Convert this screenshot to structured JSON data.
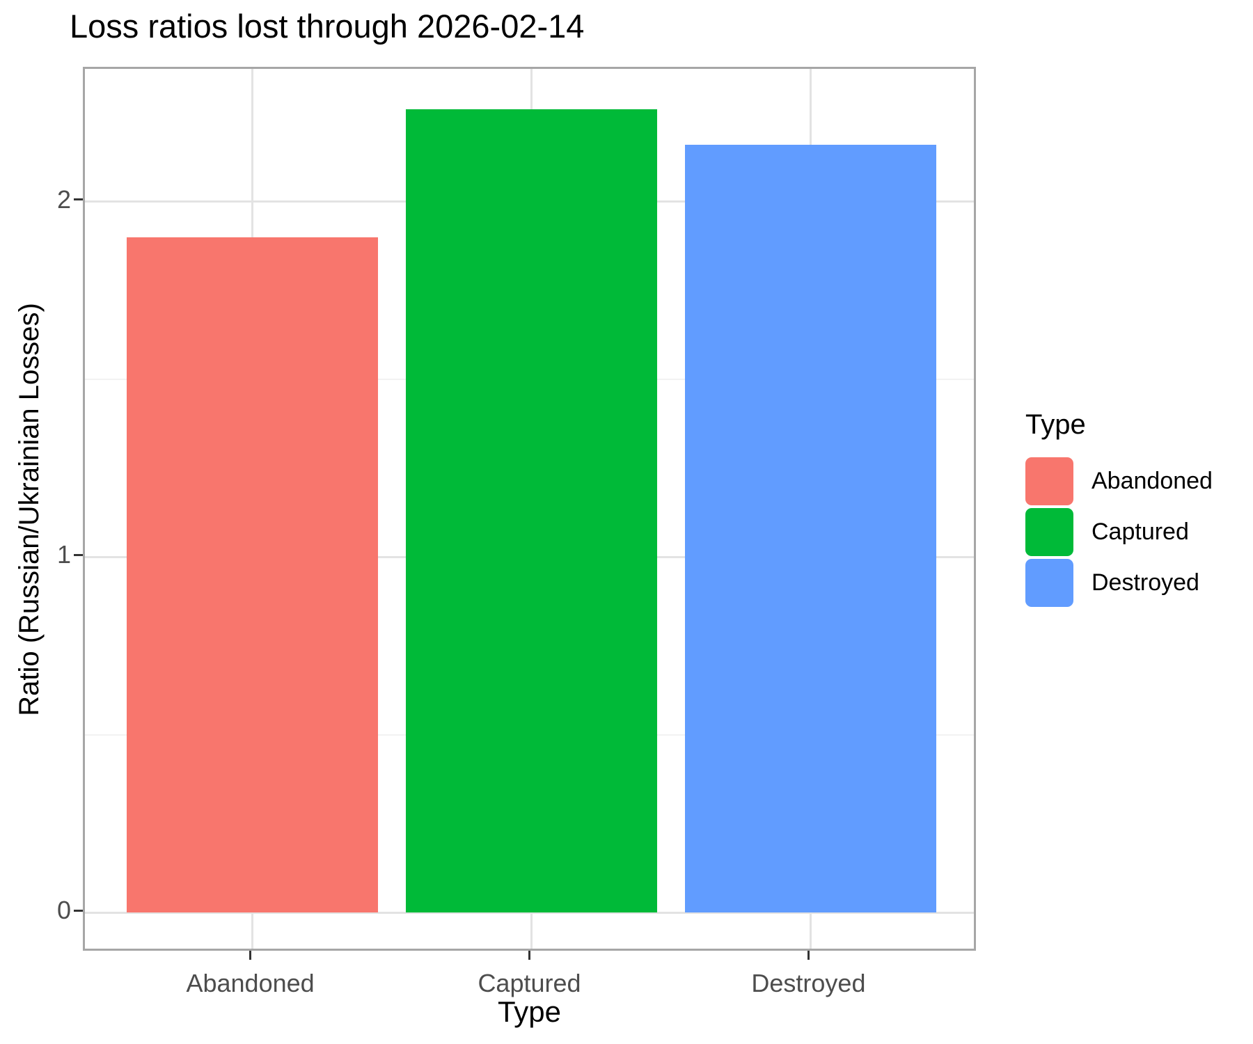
{
  "chart_data": {
    "type": "bar",
    "title": "Loss ratios lost through 2026-02-14",
    "xlabel": "Type",
    "ylabel": "Ratio (Russian/Ukrainian Losses)",
    "categories": [
      "Abandoned",
      "Captured",
      "Destroyed"
    ],
    "values": [
      1.9,
      2.26,
      2.16
    ],
    "bar_colors": [
      "#F8766D",
      "#00BA38",
      "#619CFF"
    ],
    "bar_width": 0.9,
    "y_ticks": [
      0,
      1,
      2
    ],
    "y_tick_labels": [
      "0",
      "1",
      "2"
    ],
    "y_minor_ticks": [
      0.5,
      1.5
    ],
    "ylim": [
      -0.113,
      2.373
    ],
    "xlim": [
      0.4,
      3.6
    ],
    "grid": "major-and-minor, no vertical minor",
    "legend": {
      "title": "Type",
      "position": "right",
      "entries": [
        {
          "label": "Abandoned",
          "color": "#F8766D"
        },
        {
          "label": "Captured",
          "color": "#00BA38"
        },
        {
          "label": "Destroyed",
          "color": "#619CFF"
        }
      ]
    }
  },
  "colors": {
    "background": "#FFFFFF",
    "grid_major": "#E3E3E3",
    "grid_minor": "#F2F2F2",
    "panel_border": "#A6A6A6",
    "axis_tick": "#333333",
    "tick_label": "#4D4D4D",
    "text": "#000000"
  }
}
